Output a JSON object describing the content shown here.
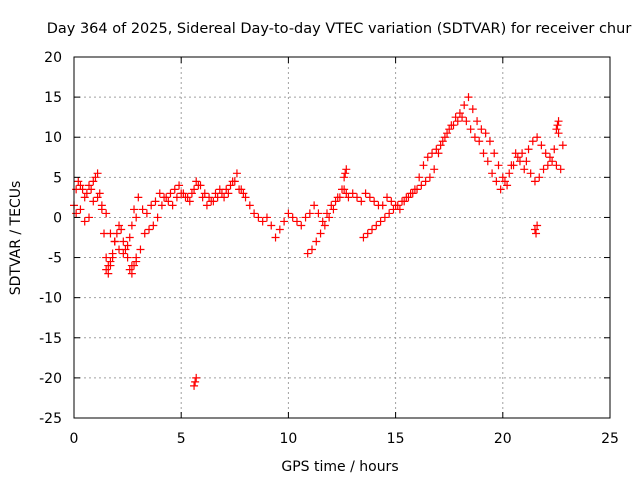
{
  "chart_data": {
    "type": "scatter",
    "title": "Day 364 of 2025, Sidereal Day-to-day VTEC variation (SDTVAR) for receiver chur",
    "xlabel": "GPS time / hours",
    "ylabel": "SDTVAR / TECUs",
    "xlim": [
      0,
      25
    ],
    "ylim": [
      -25,
      20
    ],
    "xticks": [
      0,
      5,
      10,
      15,
      20,
      25
    ],
    "yticks": [
      -25,
      -20,
      -15,
      -10,
      -5,
      0,
      5,
      10,
      15,
      20
    ],
    "grid": true,
    "marker": "+",
    "series": [
      {
        "name": "SDTVAR",
        "color": "#ff0000",
        "x": [
          0.0,
          0.1,
          0.2,
          0.3,
          0.4,
          0.5,
          0.6,
          0.7,
          0.8,
          0.9,
          1.0,
          1.1,
          1.2,
          1.3,
          1.4,
          1.5,
          1.6,
          1.7,
          1.8,
          1.9,
          2.0,
          2.1,
          2.2,
          2.3,
          2.4,
          2.5,
          2.6,
          2.7,
          2.8,
          2.9,
          3.0,
          3.2,
          3.4,
          3.6,
          3.8,
          4.0,
          4.2,
          4.4,
          4.6,
          4.8,
          5.0,
          5.2,
          5.4,
          5.6,
          5.8,
          6.0,
          6.2,
          6.4,
          6.6,
          6.8,
          7.0,
          7.2,
          7.4,
          7.6,
          7.8,
          8.0,
          8.2,
          8.4,
          8.6,
          8.8,
          9.0,
          9.2,
          9.4,
          9.6,
          9.8,
          10.0,
          10.2,
          10.4,
          10.6,
          10.8,
          11.0,
          11.2,
          11.4,
          11.6,
          11.8,
          12.0,
          12.2,
          12.4,
          12.6,
          12.8,
          13.0,
          13.2,
          13.4,
          13.6,
          13.8,
          14.0,
          14.2,
          14.4,
          14.6,
          14.8,
          15.0,
          15.2,
          15.4,
          15.6,
          15.8,
          16.0,
          16.2,
          16.4,
          16.6,
          16.8,
          17.0,
          17.2,
          17.4,
          17.6,
          17.8,
          18.0,
          18.2,
          18.4,
          18.6,
          18.8,
          19.0,
          19.2,
          19.4,
          19.6,
          19.8,
          20.0,
          20.2,
          20.4,
          20.6,
          20.8,
          21.0,
          21.2,
          21.4,
          21.6,
          21.8,
          22.0,
          22.2,
          22.4,
          22.6,
          22.8,
          0.1,
          0.3,
          0.5,
          0.7,
          0.9,
          1.1,
          1.3,
          1.5,
          1.7,
          1.9,
          2.1,
          2.3,
          2.5,
          2.7,
          2.9,
          3.1,
          3.3,
          3.5,
          3.7,
          3.9,
          4.1,
          4.3,
          4.5,
          4.7,
          4.9,
          5.1,
          5.3,
          5.5,
          5.7,
          5.9,
          6.1,
          6.3,
          6.5,
          6.7,
          6.9,
          7.1,
          7.3,
          7.5,
          7.7,
          7.9,
          10.9,
          11.1,
          11.3,
          11.5,
          11.7,
          11.9,
          12.1,
          12.3,
          12.5,
          12.7,
          13.5,
          13.7,
          13.9,
          14.1,
          14.3,
          14.5,
          14.7,
          14.9,
          15.1,
          15.3,
          15.5,
          15.7,
          15.9,
          16.1,
          16.3,
          16.5,
          16.7,
          16.9,
          17.1,
          17.3,
          17.5,
          17.7,
          17.9,
          18.1,
          18.3,
          18.5,
          18.7,
          18.9,
          19.1,
          19.3,
          19.5,
          19.7,
          19.9,
          20.1,
          20.3,
          20.5,
          20.7,
          20.9,
          21.1,
          21.3,
          21.5,
          21.7,
          21.9,
          22.1,
          22.3,
          22.5,
          22.7,
          1.5,
          1.6,
          1.7,
          1.8,
          2.6,
          2.7,
          2.8,
          2.9,
          5.6,
          5.65,
          5.7,
          12.6,
          12.65,
          12.7,
          22.5,
          22.55,
          22.6,
          21.5,
          21.55,
          21.6
        ],
        "y": [
          1.5,
          3.5,
          4.5,
          4.0,
          3.5,
          2.5,
          3.0,
          4.0,
          3.5,
          4.5,
          5.0,
          5.5,
          3.0,
          1.5,
          -2.0,
          -5.0,
          -6.0,
          -5.5,
          -4.5,
          -3.0,
          -2.0,
          -1.0,
          -1.5,
          -3.0,
          -4.0,
          -3.5,
          -2.5,
          -1.0,
          1.0,
          0.0,
          2.5,
          1.0,
          0.5,
          1.5,
          2.0,
          3.0,
          2.5,
          2.0,
          1.5,
          2.5,
          3.0,
          2.5,
          2.0,
          3.5,
          4.0,
          2.5,
          1.5,
          2.0,
          3.0,
          3.5,
          2.5,
          3.0,
          4.5,
          5.5,
          3.5,
          2.5,
          1.5,
          0.5,
          0.0,
          -0.5,
          0.0,
          -1.0,
          -2.5,
          -1.5,
          -0.5,
          0.5,
          0.0,
          -0.5,
          -1.0,
          0.0,
          0.5,
          1.5,
          0.5,
          -0.5,
          0.5,
          1.5,
          2.0,
          2.5,
          3.5,
          2.5,
          3.0,
          2.5,
          2.0,
          3.0,
          2.5,
          2.0,
          1.5,
          1.5,
          2.5,
          2.0,
          1.5,
          1.0,
          2.0,
          2.5,
          3.0,
          3.5,
          4.0,
          4.5,
          5.0,
          6.0,
          8.0,
          9.5,
          10.5,
          11.5,
          12.5,
          13.0,
          14.0,
          15.0,
          13.5,
          12.0,
          11.0,
          10.5,
          9.5,
          8.0,
          6.5,
          5.0,
          4.0,
          6.5,
          8.0,
          7.0,
          6.0,
          8.5,
          9.5,
          10.0,
          9.0,
          8.0,
          7.5,
          8.5,
          10.5,
          9.0,
          0.5,
          1.0,
          -0.5,
          0.0,
          2.0,
          2.5,
          1.0,
          0.5,
          -2.0,
          -3.0,
          -4.0,
          -4.5,
          -5.0,
          -6.0,
          -5.5,
          -4.0,
          -2.0,
          -1.5,
          -1.0,
          0.0,
          1.5,
          2.5,
          3.0,
          3.5,
          4.0,
          3.0,
          2.5,
          3.0,
          4.5,
          4.0,
          3.0,
          2.5,
          2.0,
          2.5,
          3.0,
          3.5,
          4.0,
          4.5,
          3.5,
          3.0,
          -4.5,
          -4.0,
          -3.0,
          -2.0,
          -1.0,
          0.0,
          1.0,
          2.5,
          3.5,
          3.0,
          -2.5,
          -2.0,
          -1.5,
          -1.0,
          -0.5,
          0.0,
          0.5,
          1.0,
          1.5,
          2.0,
          2.5,
          3.0,
          3.5,
          5.0,
          6.5,
          7.5,
          8.0,
          8.5,
          9.0,
          10.0,
          11.0,
          11.5,
          12.0,
          12.5,
          12.0,
          11.0,
          10.0,
          9.5,
          8.0,
          7.0,
          5.5,
          4.5,
          3.5,
          4.5,
          5.5,
          6.5,
          7.5,
          8.0,
          7.0,
          5.5,
          4.5,
          5.0,
          6.0,
          6.5,
          7.0,
          6.5,
          6.0,
          -6.5,
          -7.0,
          -6.0,
          -5.0,
          -6.5,
          -7.0,
          -6.0,
          -5.0,
          -21.0,
          -20.5,
          -20.0,
          5.0,
          5.5,
          6.0,
          11.0,
          11.5,
          12.0,
          -1.5,
          -2.0,
          -1.0
        ]
      }
    ]
  }
}
